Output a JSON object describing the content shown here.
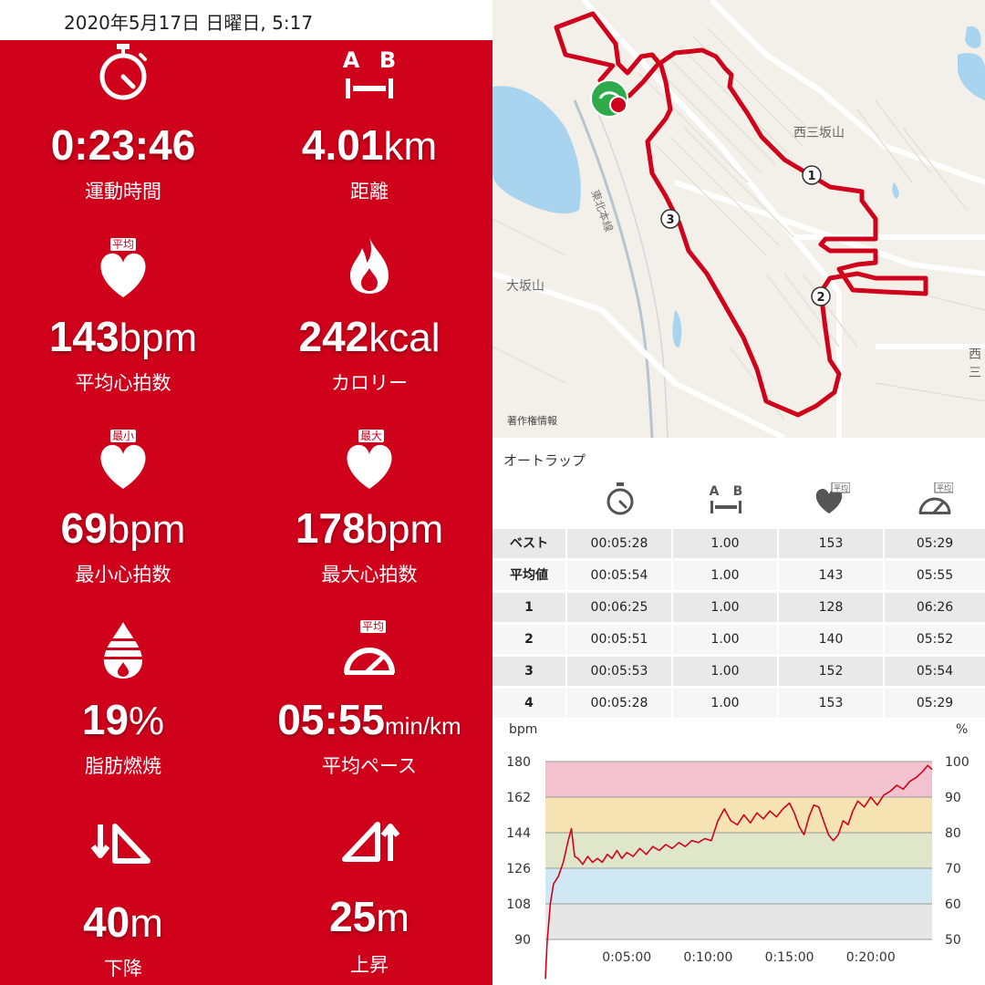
{
  "header": {
    "datetime": "2020年5月17日 日曜日, 5:17"
  },
  "stats": [
    {
      "icon": "stopwatch-icon",
      "badge": "",
      "value": "0:23:46",
      "unit": "",
      "label": "運動時間"
    },
    {
      "icon": "distance-ab-icon",
      "badge": "",
      "value": "4.01",
      "unit": "km",
      "label": "距離",
      "icon_letters": [
        "A",
        "B"
      ]
    },
    {
      "icon": "heart-icon",
      "badge": "平均",
      "value": "143",
      "unit": "bpm",
      "label": "平均心拍数"
    },
    {
      "icon": "flame-icon",
      "badge": "",
      "value": "242",
      "unit": "kcal",
      "label": "カロリー"
    },
    {
      "icon": "heart-icon",
      "badge": "最小",
      "value": "69",
      "unit": "bpm",
      "label": "最小心拍数"
    },
    {
      "icon": "heart-icon",
      "badge": "最大",
      "value": "178",
      "unit": "bpm",
      "label": "最大心拍数"
    },
    {
      "icon": "fat-burn-drop-icon",
      "badge": "",
      "value": "19",
      "unit": "%",
      "label": "脂肪燃焼"
    },
    {
      "icon": "speedometer-icon",
      "badge": "平均",
      "value": "05:55",
      "unit": "min/km",
      "label": "平均ペース"
    },
    {
      "icon": "descent-icon",
      "badge": "",
      "value": "40",
      "unit": "m",
      "label": "下降"
    },
    {
      "icon": "ascent-icon",
      "badge": "",
      "value": "25",
      "unit": "m",
      "label": "上昇"
    }
  ],
  "map": {
    "places": [
      "西三坂山",
      "大坂山",
      "西三",
      "東北本線"
    ],
    "copyright": "著作権情報",
    "lap_markers": [
      "1",
      "2",
      "3"
    ],
    "route_color": "#d0021b",
    "start_color": "#2eaa4a"
  },
  "laps": {
    "title": "オートラップ",
    "header_icons": [
      "stopwatch-icon",
      "distance-ab-icon",
      "heart-icon",
      "speedometer-icon"
    ],
    "header_badges": [
      "平均",
      "平均"
    ],
    "rows": [
      {
        "label": "ベスト",
        "time": "00:05:28",
        "distance": "1.00",
        "hr": "153",
        "pace": "05:29"
      },
      {
        "label": "平均値",
        "time": "00:05:54",
        "distance": "1.00",
        "hr": "143",
        "pace": "05:55"
      },
      {
        "label": "1",
        "time": "00:06:25",
        "distance": "1.00",
        "hr": "128",
        "pace": "06:26"
      },
      {
        "label": "2",
        "time": "00:05:51",
        "distance": "1.00",
        "hr": "140",
        "pace": "05:52"
      },
      {
        "label": "3",
        "time": "00:05:53",
        "distance": "1.00",
        "hr": "152",
        "pace": "05:54"
      },
      {
        "label": "4",
        "time": "00:05:28",
        "distance": "1.00",
        "hr": "153",
        "pace": "05:29"
      }
    ]
  },
  "chart_data": {
    "type": "line",
    "ylabel_left": "bpm",
    "ylabel_right": "%",
    "y_ticks_left": [
      "180",
      "162",
      "144",
      "126",
      "108",
      "90"
    ],
    "y_ticks_right": [
      "100",
      "90",
      "80",
      "70",
      "60",
      "50"
    ],
    "x_ticks": [
      "0:05:00",
      "0:10:00",
      "0:15:00",
      "0:20:00"
    ],
    "ylim": [
      90,
      180
    ],
    "xlim_minutes": [
      0,
      23.77
    ],
    "zones": [
      {
        "from": 90,
        "to": 108,
        "color": "#e6e6e6"
      },
      {
        "from": 108,
        "to": 126,
        "color": "#cfe8f4"
      },
      {
        "from": 126,
        "to": 144,
        "color": "#dfe6c9"
      },
      {
        "from": 144,
        "to": 162,
        "color": "#f5e3b3"
      },
      {
        "from": 162,
        "to": 180,
        "color": "#f2c2cf"
      }
    ],
    "series": [
      {
        "color": "#d0021b",
        "points": [
          [
            0,
            70
          ],
          [
            0.1,
            88
          ],
          [
            0.3,
            108
          ],
          [
            0.5,
            118
          ],
          [
            0.8,
            122
          ],
          [
            1.1,
            129
          ],
          [
            1.4,
            140
          ],
          [
            1.6,
            146
          ],
          [
            1.8,
            132
          ],
          [
            2.0,
            131
          ],
          [
            2.3,
            128
          ],
          [
            2.6,
            132
          ],
          [
            2.9,
            129
          ],
          [
            3.2,
            131
          ],
          [
            3.5,
            129
          ],
          [
            3.8,
            133
          ],
          [
            4.1,
            131
          ],
          [
            4.4,
            135
          ],
          [
            4.7,
            131
          ],
          [
            5.0,
            134
          ],
          [
            5.4,
            132
          ],
          [
            5.8,
            136
          ],
          [
            6.2,
            133
          ],
          [
            6.6,
            137
          ],
          [
            7.0,
            135
          ],
          [
            7.4,
            138
          ],
          [
            7.8,
            136
          ],
          [
            8.2,
            139
          ],
          [
            8.6,
            137
          ],
          [
            9.0,
            140
          ],
          [
            9.4,
            139
          ],
          [
            9.8,
            141
          ],
          [
            10.2,
            140
          ],
          [
            10.6,
            150
          ],
          [
            11.0,
            156
          ],
          [
            11.4,
            150
          ],
          [
            11.8,
            148
          ],
          [
            12.2,
            153
          ],
          [
            12.6,
            149
          ],
          [
            13.0,
            154
          ],
          [
            13.4,
            151
          ],
          [
            13.8,
            155
          ],
          [
            14.2,
            152
          ],
          [
            14.6,
            156
          ],
          [
            15.0,
            159
          ],
          [
            15.3,
            154
          ],
          [
            15.6,
            147
          ],
          [
            15.9,
            143
          ],
          [
            16.2,
            152
          ],
          [
            16.5,
            158
          ],
          [
            16.8,
            157
          ],
          [
            17.1,
            150
          ],
          [
            17.4,
            143
          ],
          [
            17.7,
            140
          ],
          [
            18.0,
            143
          ],
          [
            18.3,
            150
          ],
          [
            18.6,
            148
          ],
          [
            18.9,
            155
          ],
          [
            19.2,
            160
          ],
          [
            19.6,
            157
          ],
          [
            20.0,
            162
          ],
          [
            20.4,
            158
          ],
          [
            20.8,
            163
          ],
          [
            21.2,
            165
          ],
          [
            21.6,
            168
          ],
          [
            22.0,
            166
          ],
          [
            22.4,
            170
          ],
          [
            22.8,
            172
          ],
          [
            23.2,
            175
          ],
          [
            23.5,
            178
          ],
          [
            23.77,
            176
          ]
        ]
      }
    ]
  }
}
